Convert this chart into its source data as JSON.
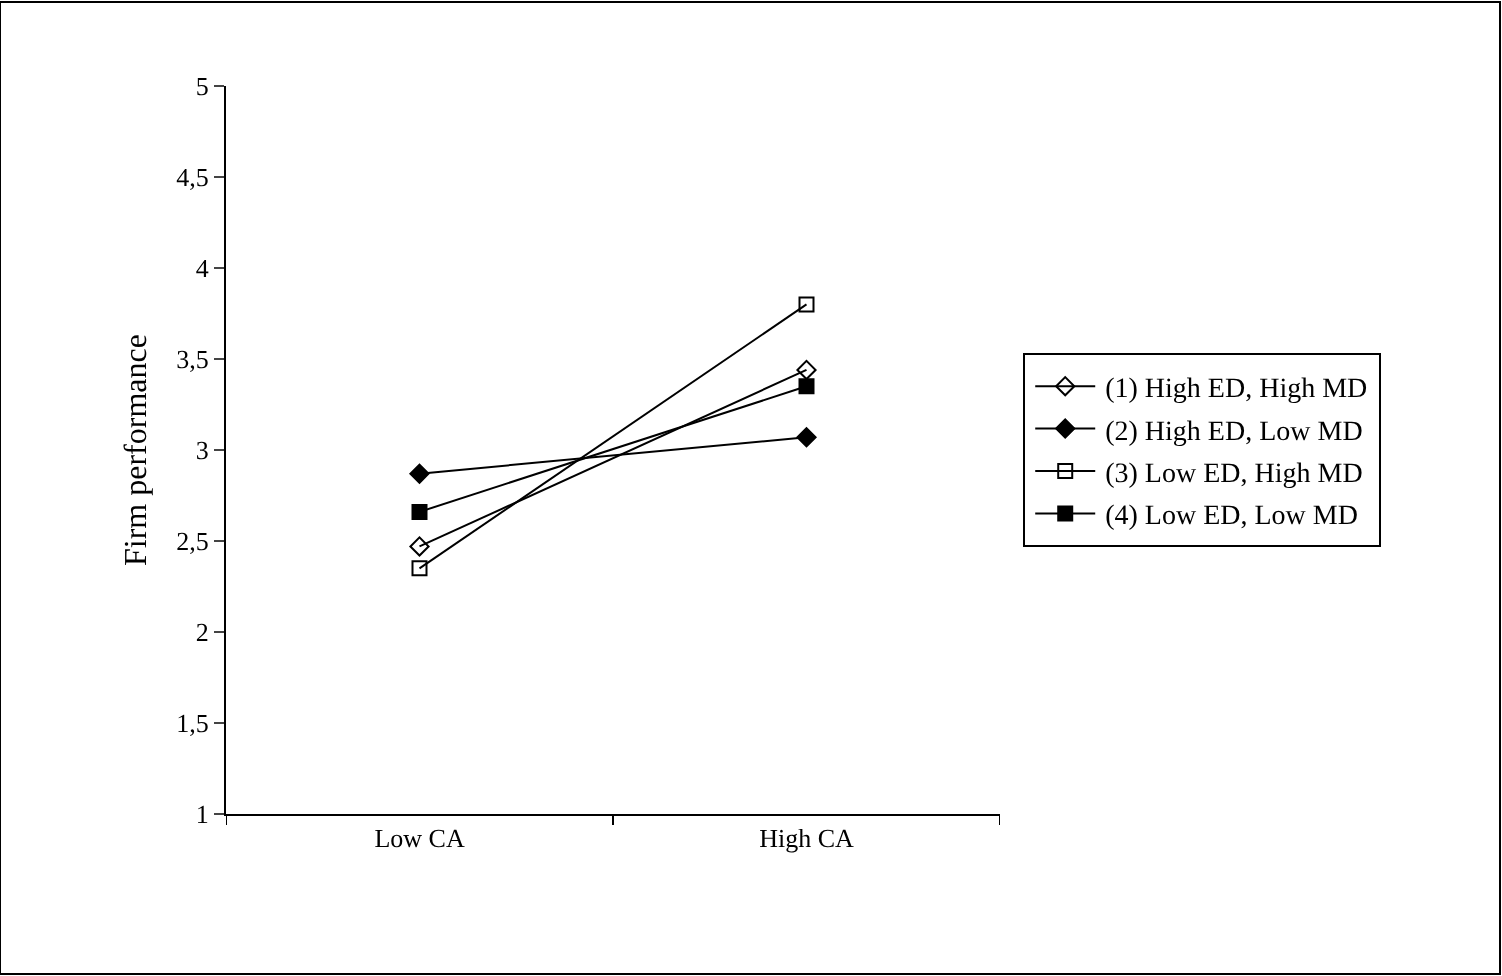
{
  "chart_data": {
    "type": "line",
    "ylabel": "Firm performance",
    "categories": [
      "Low CA",
      "High CA"
    ],
    "series": [
      {
        "name": "(1) High ED, High MD",
        "color": "#000000",
        "marker": "diamond-open",
        "values": [
          2.47,
          3.44
        ]
      },
      {
        "name": "(2) High ED, Low MD",
        "color": "#000000",
        "marker": "diamond",
        "values": [
          2.87,
          3.07
        ]
      },
      {
        "name": "(3) Low ED, High MD",
        "color": "#000000",
        "marker": "square-open",
        "values": [
          2.35,
          3.8
        ]
      },
      {
        "name": "(4) Low ED, Low MD",
        "color": "#000000",
        "marker": "square",
        "values": [
          2.66,
          3.35
        ]
      }
    ],
    "ylim": [
      1,
      5
    ],
    "yticks": [
      1,
      {
        "value": 1.5,
        "label": "1,5"
      },
      2,
      {
        "value": 2.5,
        "label": "2,5"
      },
      3,
      {
        "value": 3.5,
        "label": "3,5"
      },
      4,
      {
        "value": 4.5,
        "label": "4,5"
      },
      5
    ],
    "legend": "right",
    "line_style": "solid"
  }
}
